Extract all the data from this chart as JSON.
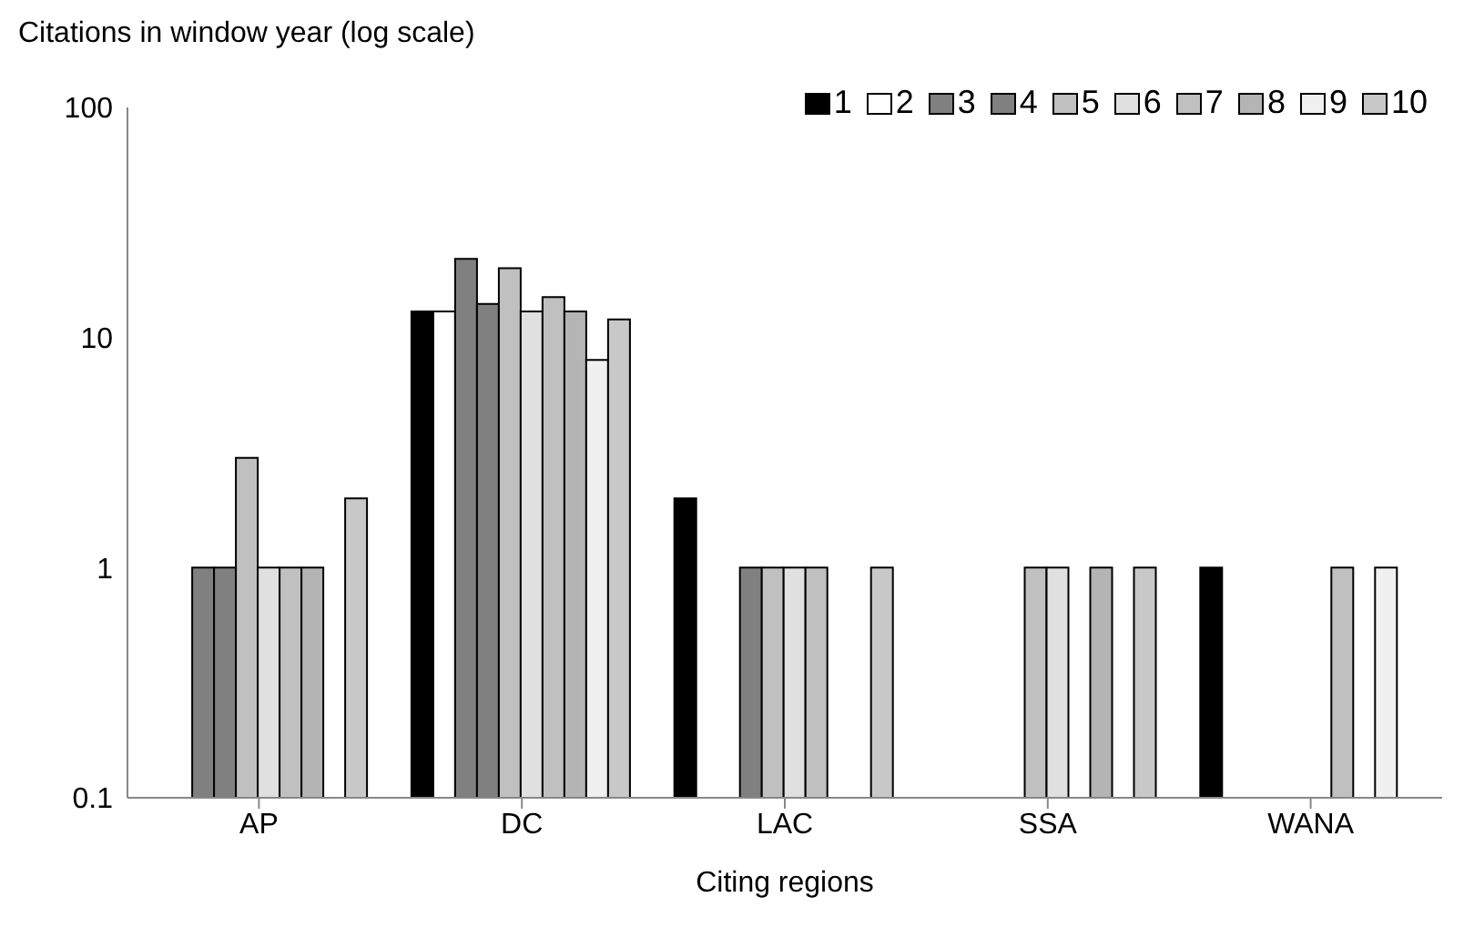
{
  "chart_data": {
    "type": "bar",
    "ylabel": "Citations in window year (log scale)",
    "xlabel": "Citing regions",
    "categories": [
      "AP",
      "DC",
      "LAC",
      "SSA",
      "WANA"
    ],
    "series": [
      {
        "name": "1",
        "color": "#000000",
        "values": [
          null,
          13,
          2,
          null,
          1
        ]
      },
      {
        "name": "2",
        "color": "#ffffff",
        "values": [
          null,
          13,
          null,
          null,
          null
        ]
      },
      {
        "name": "3",
        "color": "#808080",
        "values": [
          1,
          22,
          null,
          null,
          null
        ]
      },
      {
        "name": "4",
        "color": "#808080",
        "values": [
          1,
          14,
          1,
          null,
          null
        ]
      },
      {
        "name": "5",
        "color": "#c0c0c0",
        "values": [
          3,
          20,
          1,
          1,
          null
        ]
      },
      {
        "name": "6",
        "color": "#e0e0e0",
        "values": [
          1,
          13,
          1,
          1,
          null
        ]
      },
      {
        "name": "7",
        "color": "#c0c0c0",
        "values": [
          1,
          15,
          1,
          null,
          1
        ]
      },
      {
        "name": "8",
        "color": "#b4b4b4",
        "values": [
          1,
          13,
          null,
          1,
          null
        ]
      },
      {
        "name": "9",
        "color": "#f0f0f0",
        "values": [
          null,
          8,
          null,
          null,
          1
        ]
      },
      {
        "name": "10",
        "color": "#c8c8c8",
        "values": [
          2,
          12,
          1,
          1,
          null
        ]
      }
    ],
    "log": true,
    "ylim": [
      0.1,
      100
    ],
    "yticks": [
      0.1,
      1,
      10,
      100
    ],
    "grid": false,
    "legend": "top right"
  }
}
